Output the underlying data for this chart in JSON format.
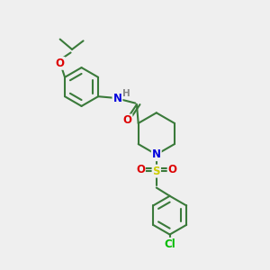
{
  "bg_color": "#efefef",
  "bond_color": "#3a7a3a",
  "bond_width": 1.5,
  "atom_colors": {
    "N": "#0000dd",
    "O": "#dd0000",
    "S": "#cccc00",
    "Cl": "#00bb00",
    "H": "#888888"
  },
  "hex_r": 0.72,
  "pip_r": 0.78,
  "fs": 8.0
}
